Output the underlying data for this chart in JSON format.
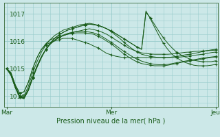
{
  "background_color": "#cce8e8",
  "grid_color": "#99cccc",
  "line_color": "#1a5c1a",
  "marker_color": "#1a5c1a",
  "title": "Pression niveau de la mer( hPa )",
  "xlabel_ticks": [
    "Mar",
    "Mer",
    "Jeu"
  ],
  "xlabel_tick_positions": [
    0,
    48,
    96
  ],
  "ylim": [
    1013.6,
    1017.4
  ],
  "yticks": [
    1014,
    1015,
    1016,
    1017
  ],
  "xlim": [
    -1,
    97
  ],
  "n_points": 49,
  "series": [
    [
      1015.0,
      1014.85,
      1014.4,
      1014.1,
      1014.15,
      1014.5,
      1015.0,
      1015.4,
      1015.7,
      1015.85,
      1015.95,
      1016.0,
      1016.05,
      1016.1,
      1016.1,
      1016.1,
      1016.05,
      1016.0,
      1015.95,
      1015.9,
      1015.82,
      1015.75,
      1015.65,
      1015.55,
      1015.5,
      1015.45,
      1015.42,
      1015.4,
      1015.4,
      1015.4,
      1015.4,
      1015.4,
      1015.4,
      1015.4,
      1015.4,
      1015.4,
      1015.4,
      1015.4,
      1015.4,
      1015.4,
      1015.42,
      1015.44,
      1015.46,
      1015.48,
      1015.5,
      1015.52,
      1015.55,
      1015.58,
      1015.6
    ],
    [
      1015.0,
      1014.85,
      1014.4,
      1014.1,
      1014.15,
      1014.5,
      1015.0,
      1015.4,
      1015.7,
      1015.9,
      1016.05,
      1016.1,
      1016.15,
      1016.2,
      1016.25,
      1016.3,
      1016.35,
      1016.38,
      1016.42,
      1016.45,
      1016.42,
      1016.38,
      1016.32,
      1016.25,
      1016.15,
      1016.05,
      1015.95,
      1015.85,
      1015.75,
      1015.68,
      1015.62,
      1015.57,
      1015.55,
      1015.53,
      1015.52,
      1015.52,
      1015.52,
      1015.52,
      1015.53,
      1015.55,
      1015.57,
      1015.59,
      1015.6,
      1015.62,
      1015.63,
      1015.64,
      1015.65,
      1015.66,
      1015.67
    ],
    [
      1015.0,
      1014.8,
      1014.35,
      1014.0,
      1014.0,
      1014.35,
      1014.85,
      1015.25,
      1015.6,
      1015.85,
      1016.05,
      1016.2,
      1016.3,
      1016.4,
      1016.45,
      1016.5,
      1016.55,
      1016.6,
      1016.62,
      1016.65,
      1016.62,
      1016.58,
      1016.52,
      1016.45,
      1016.35,
      1016.22,
      1016.1,
      1015.95,
      1015.82,
      1015.7,
      1015.6,
      1015.52,
      1015.48,
      1015.44,
      1015.42,
      1015.4,
      1015.4,
      1015.4,
      1015.42,
      1015.44,
      1015.46,
      1015.5,
      1015.52,
      1015.55,
      1015.58,
      1015.62,
      1015.65,
      1015.68,
      1015.7
    ],
    [
      1015.0,
      1014.75,
      1014.3,
      1013.95,
      1013.9,
      1014.2,
      1014.65,
      1015.05,
      1015.4,
      1015.7,
      1015.92,
      1016.1,
      1016.22,
      1016.32,
      1016.4,
      1016.45,
      1016.5,
      1016.55,
      1016.58,
      1016.62,
      1016.6,
      1016.57,
      1016.52,
      1016.45,
      1016.37,
      1016.28,
      1016.18,
      1016.08,
      1015.98,
      1015.88,
      1015.78,
      1015.7,
      1017.05,
      1016.85,
      1016.6,
      1016.35,
      1016.12,
      1015.92,
      1015.75,
      1015.6,
      1015.5,
      1015.42,
      1015.35,
      1015.3,
      1015.27,
      1015.25,
      1015.25,
      1015.25,
      1015.28
    ],
    [
      1015.0,
      1014.75,
      1014.3,
      1013.95,
      1013.9,
      1014.2,
      1014.65,
      1015.05,
      1015.4,
      1015.7,
      1015.92,
      1016.1,
      1016.22,
      1016.32,
      1016.4,
      1016.45,
      1016.5,
      1016.55,
      1016.58,
      1016.62,
      1016.6,
      1016.57,
      1016.52,
      1016.45,
      1016.37,
      1016.28,
      1016.18,
      1016.08,
      1015.98,
      1015.88,
      1015.78,
      1015.7,
      1017.1,
      1016.82,
      1016.5,
      1016.2,
      1015.92,
      1015.7,
      1015.52,
      1015.4,
      1015.3,
      1015.22,
      1015.17,
      1015.12,
      1015.1,
      1015.1,
      1015.1,
      1015.12,
      1015.15
    ],
    [
      1015.0,
      1014.8,
      1014.3,
      1013.98,
      1013.92,
      1014.22,
      1014.68,
      1015.08,
      1015.42,
      1015.68,
      1015.88,
      1016.02,
      1016.12,
      1016.2,
      1016.25,
      1016.28,
      1016.3,
      1016.3,
      1016.3,
      1016.28,
      1016.25,
      1016.18,
      1016.1,
      1016.0,
      1015.9,
      1015.78,
      1015.65,
      1015.52,
      1015.42,
      1015.32,
      1015.24,
      1015.18,
      1015.15,
      1015.12,
      1015.1,
      1015.1,
      1015.1,
      1015.12,
      1015.15,
      1015.18,
      1015.22,
      1015.25,
      1015.28,
      1015.3,
      1015.32,
      1015.35,
      1015.38,
      1015.4,
      1015.42
    ],
    [
      1015.0,
      1014.8,
      1014.32,
      1014.0,
      1013.95,
      1014.25,
      1014.7,
      1015.1,
      1015.44,
      1015.7,
      1015.9,
      1016.04,
      1016.14,
      1016.22,
      1016.28,
      1016.32,
      1016.35,
      1016.35,
      1016.35,
      1016.33,
      1016.3,
      1016.24,
      1016.16,
      1016.06,
      1015.96,
      1015.85,
      1015.73,
      1015.62,
      1015.52,
      1015.42,
      1015.34,
      1015.27,
      1015.22,
      1015.18,
      1015.15,
      1015.14,
      1015.14,
      1015.15,
      1015.18,
      1015.21,
      1015.24,
      1015.27,
      1015.3,
      1015.32,
      1015.35,
      1015.38,
      1015.4,
      1015.42,
      1015.44
    ]
  ],
  "marker_every": 3
}
